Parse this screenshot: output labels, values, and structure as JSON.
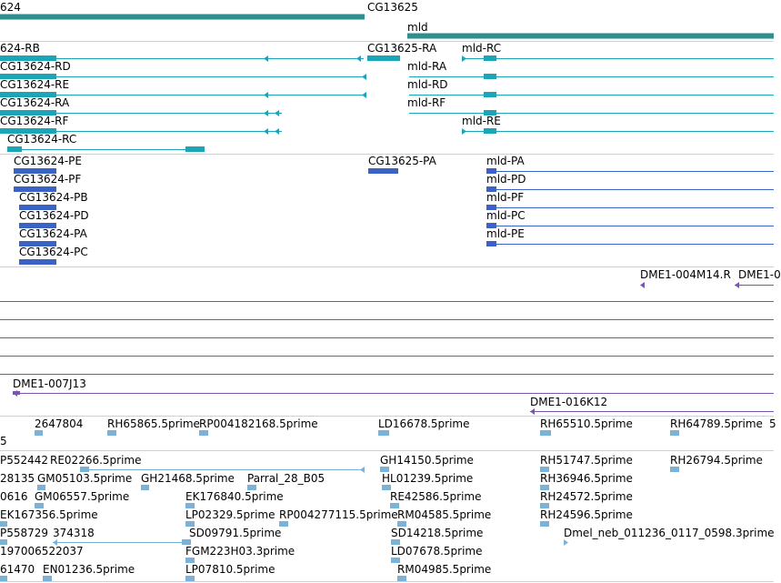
{
  "colors": {
    "gene": "#2f8f8f",
    "transcript": "#1aa6b7",
    "protein": "#3a62c7",
    "clone": "#7a55b0",
    "est": "#7ab3d6",
    "separator": "#d0d0d0"
  },
  "tracks": {
    "genes": {
      "labels": [
        "624",
        "CG13625",
        "mld"
      ]
    },
    "transcripts": {
      "labels": [
        "624-RB",
        "CG13625-RA",
        "mld-RC",
        "CG13624-RD",
        "mld-RA",
        "CG13624-RE",
        "mld-RD",
        "CG13624-RA",
        "mld-RF",
        "CG13624-RF",
        "mld-RE",
        "CG13624-RC"
      ]
    },
    "proteins": {
      "labels": [
        "CG13624-PE",
        "CG13625-PA",
        "mld-PA",
        "CG13624-PF",
        "mld-PD",
        "CG13624-PB",
        "mld-PF",
        "CG13624-PD",
        "mld-PC",
        "CG13624-PA",
        "mld-PE",
        "CG13624-PC"
      ]
    },
    "clones": {
      "labels": [
        "DME1-004M14.R",
        "DME1-0",
        "DME1-007J13",
        "DME1-016K12"
      ]
    },
    "ests_top": {
      "labels": [
        "2647804",
        "RH65865.5prime",
        "RP004182168.5prime",
        "LD16678.5prime",
        "RH65510.5prime",
        "RH64789.5prime",
        "5",
        "5"
      ]
    },
    "ests": {
      "labels": [
        "P552442",
        "RE02266.5prime",
        "GH14150.5prime",
        "RH51747.5prime",
        "RH26794.5prime",
        "28135",
        "GM05103.5prime",
        "GH21468.5prime",
        "Parral_28_B05",
        "HL01239.5prime",
        "RH36946.5prime",
        "0616",
        "GM06557.5prime",
        "EK176840.5prime",
        "RE42586.5prime",
        "RH24572.5prime",
        "EK167356.5prime",
        "LP02329.5prime",
        "RP004277115.5prime",
        "RM04585.5prime",
        "RH24596.5prime",
        "P558729",
        "374318",
        "SD09791.5prime",
        "SD14218.5prime",
        "Dmel_neb_011236_0117_0598.3prime",
        "197006522037",
        "FGM223H03.3prime",
        "LD07678.5prime",
        "61470",
        "EN01236.5prime",
        "LP07810.5prime",
        "RM04985.5prime"
      ]
    }
  }
}
